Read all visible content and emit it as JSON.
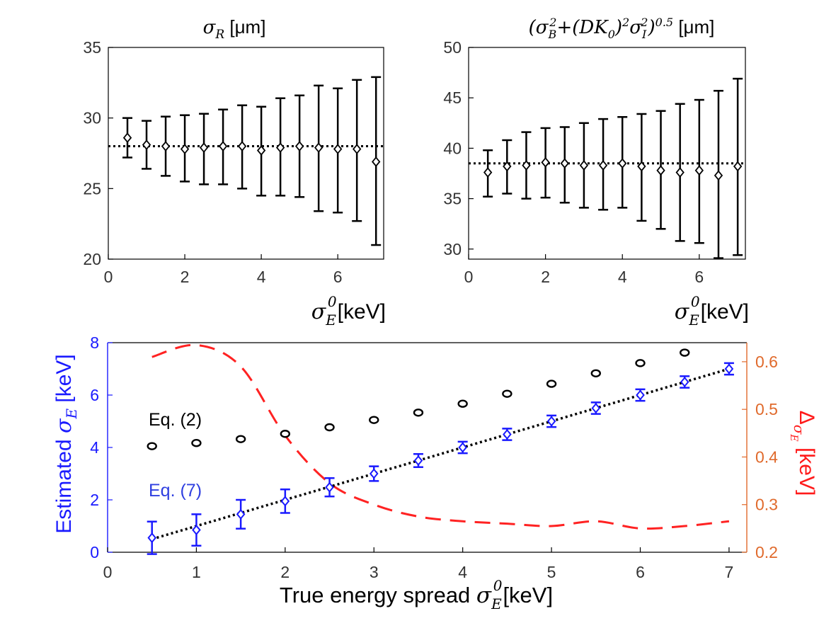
{
  "chart_data": [
    {
      "type": "scatter",
      "panel": "top-left",
      "title": "σR [μm]",
      "title_parts": {
        "symbol": "σ",
        "sub": "R",
        "unit": " [μm]"
      },
      "xlabel": "σE0[keV]",
      "xlabel_parts": {
        "symbol": "σ",
        "sub": "E",
        "sup": "0",
        "unit": "[keV]"
      },
      "ylabel": "",
      "xlim": [
        0,
        7.2
      ],
      "ylim": [
        20,
        35
      ],
      "xticks": [
        0,
        2,
        4,
        6
      ],
      "yticks": [
        20,
        25,
        30,
        35
      ],
      "reference_line": 28,
      "series": [
        {
          "name": "σR",
          "color": "#000000",
          "x": [
            0.5,
            1.0,
            1.5,
            2.0,
            2.5,
            3.0,
            3.5,
            4.0,
            4.5,
            5.0,
            5.5,
            6.0,
            6.5,
            7.0
          ],
          "y": [
            28.6,
            28.1,
            28.0,
            27.8,
            27.9,
            28.0,
            28.0,
            27.7,
            27.9,
            28.0,
            27.9,
            27.8,
            27.8,
            26.9
          ],
          "err_low": [
            27.2,
            26.4,
            25.9,
            25.5,
            25.3,
            25.3,
            25.0,
            24.5,
            24.5,
            24.4,
            23.4,
            23.3,
            22.7,
            21.0
          ],
          "err_high": [
            30.0,
            29.8,
            30.1,
            30.2,
            30.3,
            30.6,
            30.9,
            30.8,
            31.4,
            31.6,
            32.3,
            32.1,
            32.7,
            32.9
          ]
        }
      ]
    },
    {
      "type": "scatter",
      "panel": "top-right",
      "title": "(σB2+(DK0)2σI2)0.5 [μm]",
      "title_parts": {
        "open": "(",
        "s1": "σ",
        "sub1": "B",
        "sup1": "2",
        "plus": "+(",
        "D": "D",
        "K": "K",
        "sub0": "0",
        "close1": ")",
        "sup2": "2",
        "s2": "σ",
        "sub2": "I",
        "sup3": "2",
        "close2": ")",
        "sup4": "0.5",
        "unit": " [μm]"
      },
      "xlabel": "σE0[keV]",
      "xlabel_parts": {
        "symbol": "σ",
        "sub": "E",
        "sup": "0",
        "unit": "[keV]"
      },
      "ylabel": "",
      "xlim": [
        0,
        7.2
      ],
      "ylim": [
        29,
        50
      ],
      "xticks": [
        0,
        2,
        4,
        6
      ],
      "yticks": [
        30,
        35,
        40,
        45,
        50
      ],
      "reference_line": 38.5,
      "series": [
        {
          "name": "combined resolution",
          "color": "#000000",
          "x": [
            0.5,
            1.0,
            1.5,
            2.0,
            2.5,
            3.0,
            3.5,
            4.0,
            4.5,
            5.0,
            5.5,
            6.0,
            6.5,
            7.0
          ],
          "y": [
            37.6,
            38.2,
            38.3,
            38.6,
            38.5,
            38.3,
            38.3,
            38.5,
            38.2,
            37.8,
            37.6,
            37.8,
            37.3,
            38.2
          ],
          "err_low": [
            35.2,
            35.5,
            35.0,
            35.1,
            34.6,
            34.1,
            33.9,
            34.1,
            32.8,
            32.0,
            30.8,
            30.6,
            29.1,
            29.4
          ],
          "err_high": [
            39.8,
            40.8,
            41.6,
            42.0,
            42.1,
            42.5,
            42.9,
            43.1,
            43.4,
            43.7,
            44.4,
            44.8,
            45.7,
            46.9
          ]
        }
      ]
    },
    {
      "type": "scatter",
      "panel": "bottom",
      "title": "",
      "xlabel": "True energy spread σE0[keV]",
      "xlabel_parts": {
        "prefix": "True energy spread ",
        "symbol": "σ",
        "sub": "E",
        "sup": "0",
        "unit": "[keV]"
      },
      "ylabel": "Estimated σE [keV]",
      "ylabel_parts": {
        "prefix": "Estimated ",
        "symbol": "σ",
        "sub": "E",
        "unit": " [keV]"
      },
      "y2label": "ΔσE [keV]",
      "y2label_parts": {
        "symbol": "Δ",
        "sub1": "σ",
        "sub2": "E",
        "unit": " [keV]"
      },
      "xlim": [
        0,
        7.2
      ],
      "ylim": [
        0,
        8
      ],
      "y2lim": [
        0.2,
        0.64
      ],
      "xticks": [
        0,
        1,
        2,
        3,
        4,
        5,
        6,
        7
      ],
      "yticks": [
        0,
        2,
        4,
        6,
        8
      ],
      "y2ticks": [
        "0.2",
        "0.3",
        "0.4",
        "0.5",
        "0.6"
      ],
      "annotations": [
        {
          "text": "Eq. (2)",
          "color": "#000000"
        },
        {
          "text": "Eq. (7)",
          "color": "#2f3fe0"
        }
      ],
      "colors": {
        "left_axis": "#1a1aff",
        "right_axis": "#e06a2c",
        "dashed": "#ff2222",
        "eq7": "#1a1aff",
        "eq2": "#000000"
      },
      "series": [
        {
          "name": "Eq. (2)",
          "color": "#000000",
          "x": [
            0.5,
            1.0,
            1.5,
            2.0,
            2.5,
            3.0,
            3.5,
            4.0,
            4.5,
            5.0,
            5.5,
            6.0,
            6.5
          ],
          "y": [
            4.05,
            4.17,
            4.32,
            4.52,
            4.77,
            5.05,
            5.33,
            5.67,
            6.05,
            6.43,
            6.83,
            7.22,
            7.62
          ]
        },
        {
          "name": "Eq. (7)",
          "color": "#1a1aff",
          "x": [
            0.5,
            1.0,
            1.5,
            2.0,
            2.5,
            3.0,
            3.5,
            4.0,
            4.5,
            5.0,
            5.5,
            6.0,
            6.5,
            7.0
          ],
          "y": [
            0.55,
            0.85,
            1.45,
            1.95,
            2.48,
            3.0,
            3.5,
            4.0,
            4.5,
            5.0,
            5.5,
            6.0,
            6.5,
            7.0
          ],
          "err": [
            0.62,
            0.6,
            0.55,
            0.45,
            0.35,
            0.28,
            0.25,
            0.22,
            0.22,
            0.22,
            0.22,
            0.22,
            0.22,
            0.22
          ]
        },
        {
          "name": "true (y = x)",
          "color": "#000000",
          "style": "dotted",
          "x": [
            0.5,
            7.0
          ],
          "y": [
            0.5,
            7.0
          ]
        },
        {
          "name": "ΔσE",
          "color": "#ff2222",
          "style": "dashed",
          "axis": "right",
          "x": [
            0.5,
            1.0,
            1.5,
            2.0,
            2.5,
            3.0,
            3.5,
            4.0,
            4.5,
            5.0,
            5.5,
            6.0,
            6.5,
            7.0
          ],
          "y": [
            0.61,
            0.635,
            0.59,
            0.445,
            0.345,
            0.3,
            0.275,
            0.265,
            0.26,
            0.255,
            0.265,
            0.25,
            0.255,
            0.265
          ]
        }
      ]
    }
  ]
}
